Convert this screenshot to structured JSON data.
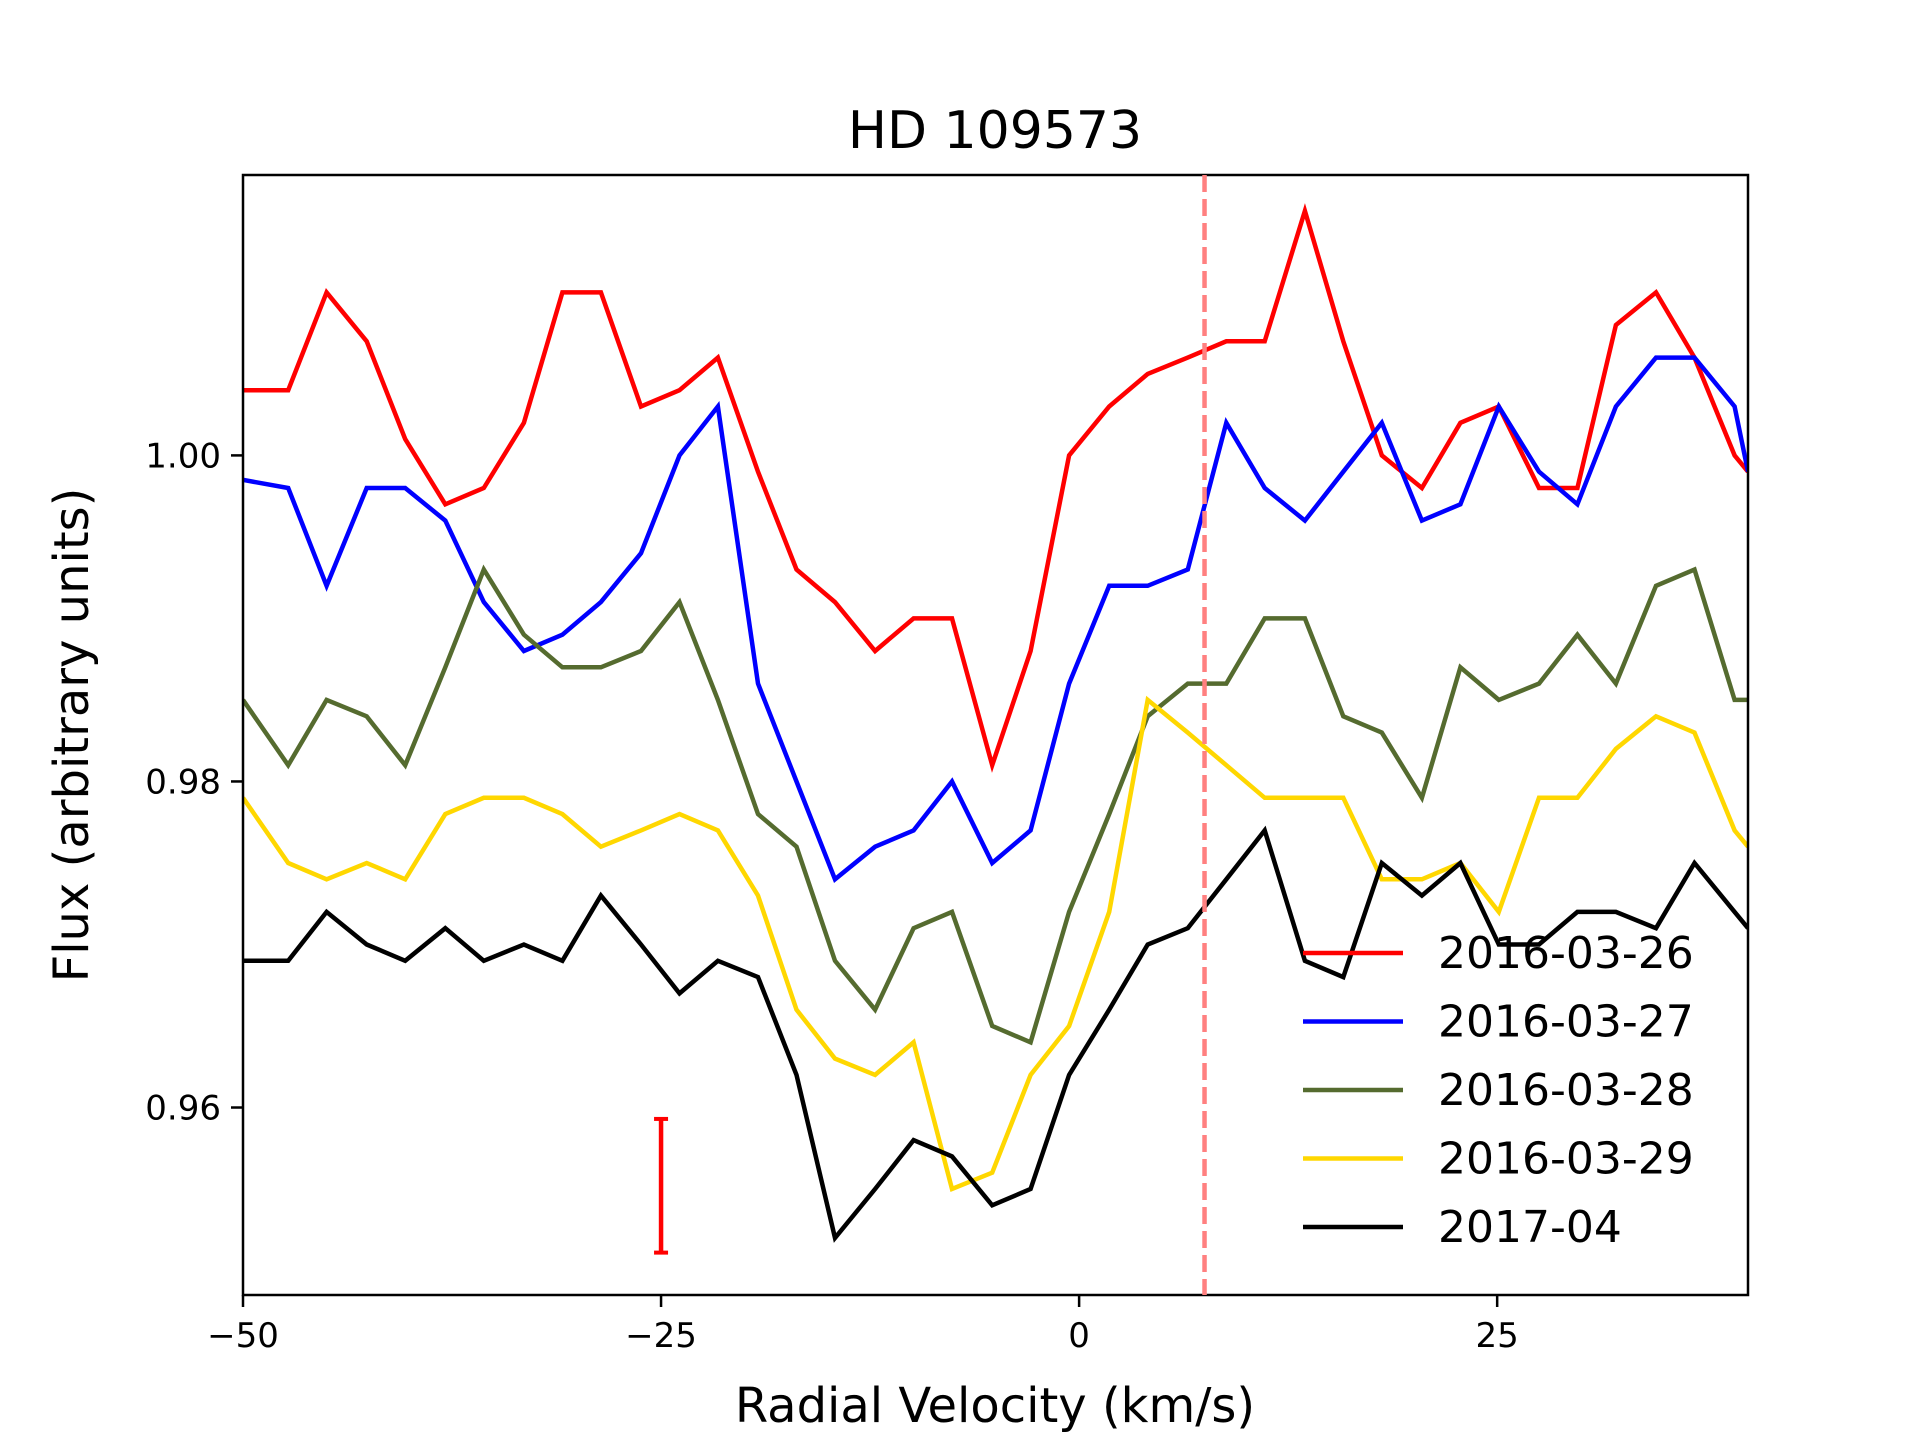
{
  "chart_data": {
    "type": "line",
    "title": "HD 109573",
    "xlabel": "Radial Velocity (km/s)",
    "ylabel": "Flux (arbitrary units)",
    "xlim": [
      -50,
      40
    ],
    "ylim": [
      0.9485,
      1.0172
    ],
    "xticks": [
      -50,
      -25,
      0,
      25
    ],
    "xtick_labels": [
      "−50",
      "−25",
      "0",
      "25"
    ],
    "yticks": [
      0.96,
      0.98,
      1.0
    ],
    "ytick_labels": [
      "0.96",
      "0.98",
      "1.00"
    ],
    "grid": false,
    "legend_position": "lower-right",
    "x": [
      -50,
      -47.3,
      -45,
      -42.6,
      -40.3,
      -37.9,
      -35.6,
      -33.2,
      -30.9,
      -28.6,
      -26.2,
      -23.9,
      -21.6,
      -19.2,
      -16.9,
      -14.6,
      -12.2,
      -9.9,
      -7.6,
      -5.2,
      -2.9,
      -0.6,
      1.8,
      4.1,
      6.5,
      8.8,
      11.1,
      13.5,
      15.8,
      18.1,
      20.5,
      22.8,
      25.1,
      27.5,
      29.8,
      32.1,
      34.5,
      36.8,
      39.2,
      40
    ],
    "series": [
      {
        "name": "2016-03-26",
        "color": "#ff0000",
        "values": [
          1.004,
          1.004,
          1.01,
          1.007,
          1.001,
          0.997,
          0.998,
          1.002,
          1.01,
          1.01,
          1.003,
          1.004,
          1.006,
          0.999,
          0.993,
          0.991,
          0.988,
          0.99,
          0.99,
          0.981,
          0.988,
          1.0,
          1.003,
          1.005,
          1.006,
          1.007,
          1.007,
          1.015,
          1.007,
          1.0,
          0.998,
          1.002,
          1.003,
          0.998,
          0.998,
          1.008,
          1.01,
          1.006,
          1.0,
          0.999
        ]
      },
      {
        "name": "2016-03-27",
        "color": "#0000ff",
        "values": [
          0.9985,
          0.998,
          0.992,
          0.998,
          0.998,
          0.996,
          0.991,
          0.988,
          0.989,
          0.991,
          0.994,
          1.0,
          1.003,
          0.986,
          0.98,
          0.974,
          0.976,
          0.977,
          0.98,
          0.975,
          0.977,
          0.986,
          0.992,
          0.992,
          0.993,
          1.002,
          0.998,
          0.996,
          0.999,
          1.002,
          0.996,
          0.997,
          1.003,
          0.999,
          0.997,
          1.003,
          1.006,
          1.006,
          1.003,
          0.999
        ]
      },
      {
        "name": "2016-03-28",
        "color": "#556b2f",
        "values": [
          0.985,
          0.981,
          0.985,
          0.984,
          0.981,
          0.987,
          0.993,
          0.989,
          0.987,
          0.987,
          0.988,
          0.991,
          0.985,
          0.978,
          0.976,
          0.969,
          0.966,
          0.971,
          0.972,
          0.965,
          0.964,
          0.972,
          0.978,
          0.984,
          0.986,
          0.986,
          0.99,
          0.99,
          0.984,
          0.983,
          0.979,
          0.987,
          0.985,
          0.986,
          0.989,
          0.986,
          0.992,
          0.993,
          0.985,
          0.985
        ]
      },
      {
        "name": "2016-03-29",
        "color": "#ffd700",
        "values": [
          0.979,
          0.975,
          0.974,
          0.975,
          0.974,
          0.978,
          0.979,
          0.979,
          0.978,
          0.976,
          0.977,
          0.978,
          0.977,
          0.973,
          0.966,
          0.963,
          0.962,
          0.964,
          0.955,
          0.956,
          0.962,
          0.965,
          0.972,
          0.985,
          0.983,
          0.981,
          0.979,
          0.979,
          0.979,
          0.974,
          0.974,
          0.975,
          0.972,
          0.979,
          0.979,
          0.982,
          0.984,
          0.983,
          0.977,
          0.976
        ]
      },
      {
        "name": "2017-04",
        "color": "#000000",
        "values": [
          0.969,
          0.969,
          0.972,
          0.97,
          0.969,
          0.971,
          0.969,
          0.97,
          0.969,
          0.973,
          0.97,
          0.967,
          0.969,
          0.968,
          0.962,
          0.952,
          0.955,
          0.958,
          0.957,
          0.954,
          0.955,
          0.962,
          0.966,
          0.97,
          0.971,
          0.974,
          0.977,
          0.969,
          0.968,
          0.975,
          0.973,
          0.975,
          0.97,
          0.97,
          0.972,
          0.972,
          0.971,
          0.975,
          0.972,
          0.971
        ]
      }
    ],
    "annotations": {
      "vline_x": 7.5,
      "vline_color": "#ff8080",
      "errorbar_x": -25,
      "errorbar_range": [
        0.9511,
        0.9593
      ],
      "errorbar_color": "#ff0000"
    }
  }
}
